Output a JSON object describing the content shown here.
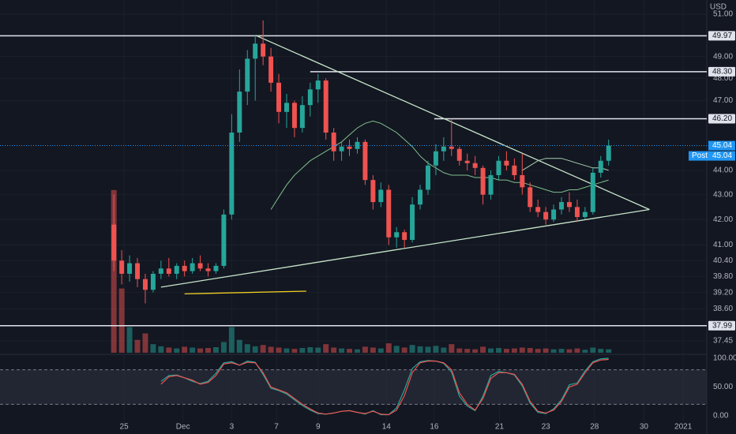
{
  "chart_data": {
    "type": "candlestick",
    "currency": "USD",
    "log_scale": true,
    "grid": true,
    "up_color": "#26a69a",
    "down_color": "#ef5350",
    "ylim": [
      37.03,
      51.69
    ],
    "yticks": [
      {
        "value": 51,
        "label": "51.00"
      },
      {
        "value": 49,
        "label": "49.00"
      },
      {
        "value": 48,
        "label": "48.00"
      },
      {
        "value": 47,
        "label": "47.00"
      },
      {
        "value": 44,
        "label": "44.00"
      },
      {
        "value": 43,
        "label": "43.00"
      },
      {
        "value": 42,
        "label": "42.00"
      },
      {
        "value": 41,
        "label": "41.00"
      },
      {
        "value": 40.4,
        "label": "40.40"
      },
      {
        "value": 39.8,
        "label": "39.80"
      },
      {
        "value": 39.2,
        "label": "39.20"
      },
      {
        "value": 38.6,
        "label": "38.60"
      },
      {
        "value": 37.45,
        "label": "37.45"
      }
    ],
    "xlim": [
      -14.5,
      75.5
    ],
    "xticks": [
      {
        "value": 1.3,
        "label": "25"
      },
      {
        "value": 8.8,
        "label": "Dec"
      },
      {
        "value": 15,
        "label": "3"
      },
      {
        "value": 20.7,
        "label": "7"
      },
      {
        "value": 26,
        "label": "9"
      },
      {
        "value": 34.7,
        "label": "14"
      },
      {
        "value": 40.8,
        "label": "16"
      },
      {
        "value": 49.1,
        "label": "21"
      },
      {
        "value": 55,
        "label": "23"
      },
      {
        "value": 61.2,
        "label": "28"
      },
      {
        "value": 67.5,
        "label": "30"
      },
      {
        "value": 72.5,
        "label": "2021"
      }
    ],
    "open": [
      41.8,
      40.4,
      39.9,
      40.3,
      39.7,
      39.3,
      39.9,
      40.1,
      39.9,
      40.2,
      40.0,
      40.3,
      40.1,
      40.0,
      40.2,
      42.2,
      45.6,
      47.4,
      48.9,
      49.6,
      49.0,
      47.8,
      46.5,
      46.9,
      45.8,
      46.8,
      47.5,
      47.9,
      45.6,
      44.8,
      45.0,
      44.9,
      45.2,
      43.6,
      42.7,
      43.2,
      41.3,
      41.5,
      41.2,
      42.6,
      43.2,
      44.2,
      44.8,
      45.0,
      44.9,
      44.4,
      44.3,
      44.1,
      43.0,
      43.8,
      44.4,
      44.2,
      43.8,
      43.3,
      42.5,
      42.3,
      42.0,
      42.4,
      42.7,
      42.5,
      42.1,
      42.3,
      43.9,
      44.4
    ],
    "high": [
      43.0,
      40.8,
      40.6,
      40.5,
      39.9,
      40.0,
      40.4,
      40.5,
      40.3,
      40.4,
      40.5,
      40.6,
      40.3,
      40.3,
      42.4,
      46.4,
      48.4,
      49.3,
      50.0,
      50.7,
      49.4,
      48.2,
      47.3,
      47.0,
      47.2,
      47.8,
      48.2,
      48.0,
      45.8,
      45.2,
      45.3,
      45.4,
      45.3,
      43.8,
      43.5,
      43.4,
      41.7,
      41.6,
      42.9,
      43.4,
      44.4,
      45.1,
      45.4,
      46.2,
      45.0,
      44.7,
      44.6,
      44.2,
      44.0,
      44.6,
      44.8,
      44.5,
      44.7,
      43.5,
      42.8,
      42.5,
      42.6,
      42.9,
      43.1,
      42.8,
      42.5,
      44.1,
      44.6,
      45.3
    ],
    "low": [
      40.0,
      39.5,
      39.6,
      39.4,
      38.8,
      39.2,
      39.7,
      39.8,
      39.7,
      39.8,
      39.9,
      40.0,
      39.8,
      39.9,
      40.1,
      42.0,
      45.2,
      46.8,
      47.0,
      48.6,
      47.4,
      46.0,
      45.8,
      45.4,
      45.6,
      46.3,
      46.9,
      45.3,
      44.4,
      44.4,
      44.6,
      44.7,
      43.4,
      42.4,
      42.5,
      41.0,
      40.9,
      40.9,
      41.1,
      42.4,
      43.0,
      43.8,
      44.4,
      44.6,
      44.2,
      44.0,
      43.8,
      42.6,
      42.8,
      43.6,
      44.0,
      43.6,
      43.0,
      42.3,
      42.1,
      41.8,
      41.9,
      42.2,
      42.3,
      41.9,
      42.0,
      42.2,
      43.7,
      44.2
    ],
    "close": [
      40.4,
      39.9,
      40.3,
      39.7,
      39.3,
      39.9,
      40.1,
      39.9,
      40.2,
      40.0,
      40.3,
      40.1,
      40.0,
      40.2,
      42.2,
      45.6,
      47.4,
      48.9,
      49.6,
      49.0,
      47.8,
      46.5,
      46.9,
      45.8,
      46.8,
      47.5,
      47.9,
      45.6,
      44.8,
      45.0,
      44.9,
      45.2,
      43.6,
      42.7,
      43.2,
      41.3,
      41.5,
      41.2,
      42.6,
      43.2,
      44.2,
      44.8,
      45.0,
      44.9,
      44.4,
      44.3,
      44.1,
      43.0,
      43.8,
      44.4,
      44.2,
      43.8,
      43.3,
      42.5,
      42.3,
      42.0,
      42.4,
      42.7,
      42.5,
      42.1,
      42.3,
      43.9,
      44.4,
      45.04
    ],
    "volume": {
      "vlim": [
        0,
        400
      ],
      "values": [
        380,
        150,
        60,
        30,
        45,
        20,
        15,
        12,
        10,
        14,
        12,
        10,
        11,
        13,
        25,
        60,
        30,
        20,
        15,
        18,
        14,
        12,
        10,
        9,
        11,
        13,
        12,
        20,
        12,
        10,
        9,
        8,
        14,
        12,
        10,
        22,
        16,
        12,
        18,
        15,
        14,
        16,
        12,
        20,
        10,
        9,
        8,
        14,
        10,
        11,
        9,
        10,
        12,
        11,
        9,
        10,
        8,
        9,
        8,
        10,
        7,
        12,
        9,
        8
      ]
    },
    "moving_averages": [
      {
        "color": "#7fbf8a",
        "values": [
          null,
          null,
          null,
          null,
          null,
          null,
          null,
          null,
          null,
          null,
          null,
          null,
          null,
          null,
          null,
          null,
          null,
          null,
          null,
          null,
          42.4,
          42.9,
          43.4,
          43.8,
          44.1,
          44.4,
          44.6,
          44.8,
          45.0,
          45.2,
          45.5,
          45.8,
          46.0,
          46.1,
          46.0,
          45.8,
          45.6,
          45.3,
          45.0,
          44.6,
          44.3,
          44.1,
          43.9,
          43.8,
          43.8,
          43.8,
          43.7,
          43.7,
          43.7,
          43.6,
          43.6,
          43.5,
          43.5,
          43.4,
          43.3,
          43.2,
          43.1,
          43.1,
          43.2,
          43.2,
          43.3,
          43.4,
          43.5,
          43.6
        ]
      },
      {
        "color": "#a8cfae",
        "values": [
          null,
          null,
          null,
          null,
          null,
          null,
          null,
          null,
          null,
          null,
          null,
          null,
          null,
          null,
          null,
          null,
          null,
          null,
          null,
          null,
          null,
          null,
          null,
          null,
          null,
          null,
          null,
          null,
          null,
          null,
          null,
          null,
          null,
          null,
          null,
          null,
          null,
          null,
          null,
          null,
          null,
          null,
          null,
          null,
          null,
          null,
          null,
          null,
          null,
          null,
          null,
          null,
          44.0,
          44.2,
          44.4,
          44.5,
          44.5,
          44.5,
          44.4,
          44.3,
          44.2,
          44.1,
          44.1,
          44.0
        ]
      }
    ],
    "trendlines": [
      {
        "color": "#c8e6c9",
        "x": [
          18,
          68.2
        ],
        "y": [
          50.0,
          42.4
        ]
      },
      {
        "color": "#c8e6c9",
        "x": [
          6,
          68.2
        ],
        "y": [
          39.4,
          42.4
        ]
      },
      {
        "color": "#f2d024",
        "x": [
          9,
          24.5
        ],
        "y": [
          39.15,
          39.25
        ]
      }
    ],
    "price_lines": [
      {
        "value": 49.97,
        "label": "49.97",
        "from": -14.5
      },
      {
        "value": 48.3,
        "label": "48.30",
        "from": 25
      },
      {
        "value": 46.2,
        "label": "46.20",
        "from": 40.8
      },
      {
        "value": 37.99,
        "label": "37.99",
        "from": -14.5
      }
    ],
    "last_price": {
      "value": 45.04,
      "label": "45.04",
      "color": "#2196f3"
    },
    "post_market": {
      "name": "Post",
      "value": 45.04,
      "label": "45.04"
    },
    "oscillator": {
      "ylim": [
        0,
        100
      ],
      "yticks": [
        {
          "value": 100,
          "label": "100.00"
        },
        {
          "value": 50,
          "label": "50.00"
        },
        {
          "value": 0,
          "label": "0.00"
        }
      ],
      "band": [
        20,
        80
      ],
      "series": [
        {
          "color": "#26a69a",
          "values": [
            null,
            null,
            null,
            null,
            null,
            null,
            60,
            70,
            71,
            66,
            60,
            56,
            60,
            74,
            92,
            94,
            88,
            95,
            93,
            72,
            48,
            44,
            38,
            28,
            18,
            10,
            4,
            3,
            5,
            8,
            9,
            6,
            3,
            9,
            2,
            2,
            14,
            45,
            82,
            94,
            96,
            95,
            91,
            76,
            34,
            17,
            9,
            34,
            70,
            77,
            75,
            71,
            52,
            22,
            6,
            4,
            12,
            28,
            54,
            57,
            78,
            94,
            99,
            100
          ]
        },
        {
          "color": "#ef5350",
          "values": [
            null,
            null,
            null,
            null,
            null,
            null,
            55,
            68,
            70,
            66,
            62,
            55,
            58,
            70,
            90,
            92,
            88,
            93,
            92,
            75,
            50,
            45,
            40,
            30,
            20,
            12,
            5,
            3,
            5,
            8,
            9,
            6,
            4,
            8,
            3,
            2,
            10,
            35,
            75,
            92,
            95,
            95,
            92,
            80,
            40,
            20,
            10,
            30,
            65,
            75,
            75,
            72,
            55,
            25,
            8,
            5,
            10,
            25,
            50,
            55,
            75,
            92,
            97,
            98
          ]
        }
      ]
    }
  }
}
